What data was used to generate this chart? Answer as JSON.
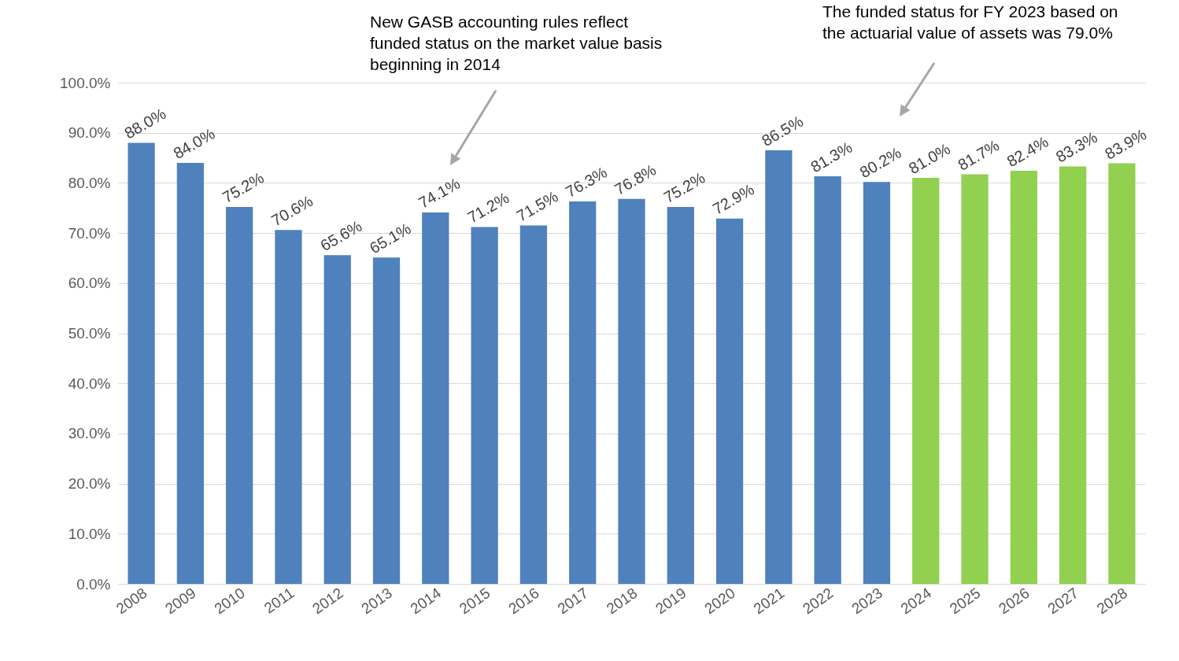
{
  "chart_data": {
    "type": "bar",
    "categories": [
      "2008",
      "2009",
      "2010",
      "2011",
      "2012",
      "2013",
      "2014",
      "2015",
      "2016",
      "2017",
      "2018",
      "2019",
      "2020",
      "2021",
      "2022",
      "2023",
      "2024",
      "2025",
      "2026",
      "2027",
      "2028"
    ],
    "values": [
      88.0,
      84.0,
      75.2,
      70.6,
      65.6,
      65.1,
      74.1,
      71.2,
      71.5,
      76.3,
      76.8,
      75.2,
      72.9,
      86.5,
      81.3,
      80.2,
      81.0,
      81.7,
      82.4,
      83.3,
      83.9
    ],
    "colors": [
      "#4f81bd",
      "#4f81bd",
      "#4f81bd",
      "#4f81bd",
      "#4f81bd",
      "#4f81bd",
      "#4f81bd",
      "#4f81bd",
      "#4f81bd",
      "#4f81bd",
      "#4f81bd",
      "#4f81bd",
      "#4f81bd",
      "#4f81bd",
      "#4f81bd",
      "#4f81bd",
      "#92d050",
      "#92d050",
      "#92d050",
      "#92d050",
      "#92d050"
    ],
    "value_labels": [
      "88.0%",
      "84.0%",
      "75.2%",
      "70.6%",
      "65.6%",
      "65.1%",
      "74.1%",
      "71.2%",
      "71.5%",
      "76.3%",
      "76.8%",
      "75.2%",
      "72.9%",
      "86.5%",
      "81.3%",
      "80.2%",
      "81.0%",
      "81.7%",
      "82.4%",
      "83.3%",
      "83.9%"
    ],
    "ylim": [
      0,
      100
    ],
    "yticks": [
      {
        "value": 0,
        "label": "0.0%"
      },
      {
        "value": 10,
        "label": "10.0%"
      },
      {
        "value": 20,
        "label": "20.0%"
      },
      {
        "value": 30,
        "label": "30.0%"
      },
      {
        "value": 40,
        "label": "40.0%"
      },
      {
        "value": 50,
        "label": "50.0%"
      },
      {
        "value": 60,
        "label": "60.0%"
      },
      {
        "value": 70,
        "label": "70.0%"
      },
      {
        "value": 80,
        "label": "80.0%"
      },
      {
        "value": 90,
        "label": "90.0%"
      },
      {
        "value": 100,
        "label": "100.0%"
      }
    ],
    "grid": "y",
    "annotations": [
      "New GASB accounting rules reflect funded status on the market value basis beginning in 2014",
      "The funded status for FY 2023 based on the actuarial value of assets was 79.0%"
    ]
  }
}
